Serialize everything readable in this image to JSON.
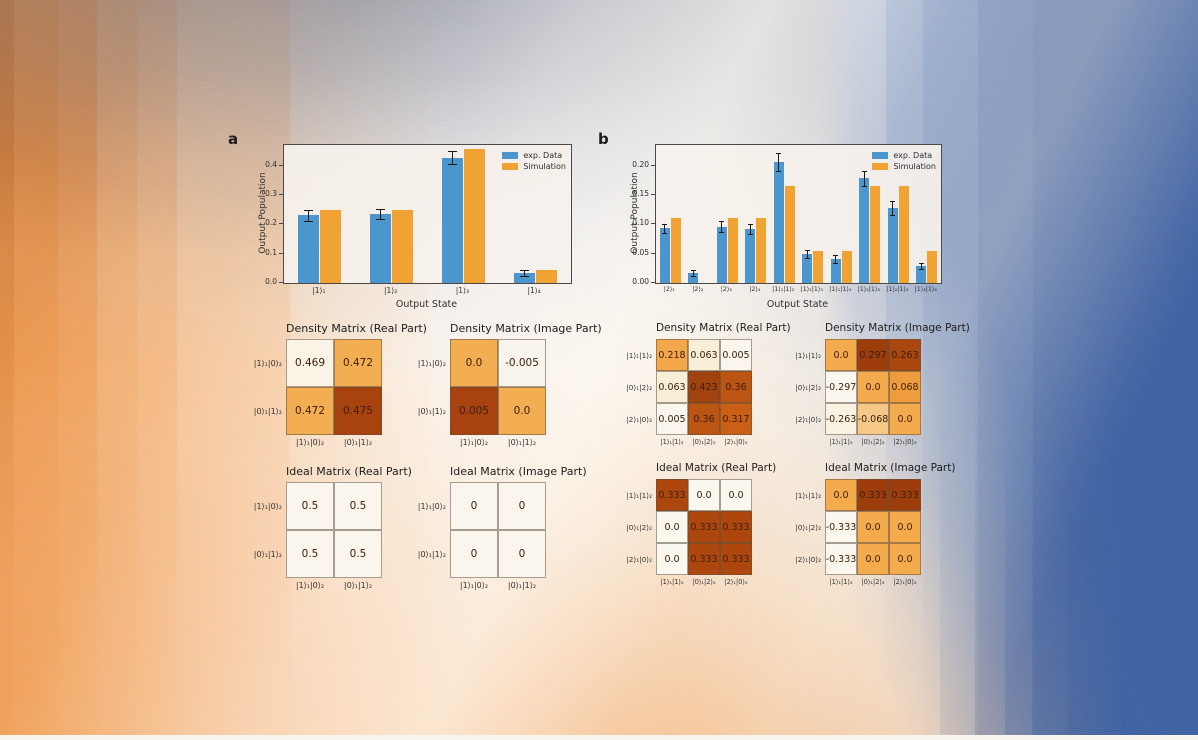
{
  "figure": {
    "panel_a_label": "a",
    "panel_b_label": "b"
  },
  "colors": {
    "exp_blue": "#4a96cd",
    "sim_orange": "#f0a232",
    "error_bar": "#1a1a1a",
    "plot_bg": "#f6f1eb",
    "bg_orange": "#ec8c3d",
    "bg_blue": "#4164a4"
  },
  "chart_data": [
    {
      "id": "a_bars",
      "type": "bar",
      "ylabel": "Output Population",
      "xlabel": "Output State",
      "ymax": 0.47,
      "yticks": [
        0.0,
        0.1,
        0.2,
        0.3,
        0.4
      ],
      "ytick_labels": [
        "0.0",
        "0.1",
        "0.2",
        "0.3",
        "0.4"
      ],
      "categories": [
        "|1⟩₁",
        "|1⟩₂",
        "|1⟩₃",
        "|1⟩₄"
      ],
      "legend_position": "upper right",
      "series": [
        {
          "name": "exp. Data",
          "color_key": "exp_blue",
          "values": [
            0.23,
            0.235,
            0.427,
            0.033
          ],
          "errors": [
            0.018,
            0.018,
            0.022,
            0.01
          ]
        },
        {
          "name": "Simulation",
          "color_key": "sim_orange",
          "values": [
            0.25,
            0.25,
            0.457,
            0.046
          ]
        }
      ]
    },
    {
      "id": "b_bars",
      "type": "bar",
      "ylabel": "Output Population",
      "xlabel": "Output State",
      "ymax": 0.235,
      "yticks": [
        0.0,
        0.05,
        0.1,
        0.15,
        0.2
      ],
      "ytick_labels": [
        "0.00",
        "0.05",
        "0.10",
        "0.15",
        "0.20"
      ],
      "categories": [
        "|2⟩₁",
        "|2⟩₂",
        "|2⟩₃",
        "|2⟩₄",
        "|1⟩₁|1⟩₂",
        "|1⟩₁|1⟩₃",
        "|1⟩₁|1⟩₄",
        "|1⟩₂|1⟩₃",
        "|1⟩₂|1⟩₄",
        "|1⟩₃|1⟩₄"
      ],
      "legend_position": "upper right",
      "series": [
        {
          "name": "exp. Data",
          "color_key": "exp_blue",
          "values": [
            0.093,
            0.017,
            0.096,
            0.092,
            0.206,
            0.05,
            0.041,
            0.178,
            0.128,
            0.029
          ],
          "errors": [
            0.008,
            0.005,
            0.01,
            0.009,
            0.016,
            0.007,
            0.007,
            0.012,
            0.012,
            0.005
          ]
        },
        {
          "name": "Simulation",
          "color_key": "sim_orange",
          "values": [
            0.111,
            0.0,
            0.111,
            0.111,
            0.166,
            0.055,
            0.055,
            0.166,
            0.166,
            0.055
          ]
        }
      ]
    },
    {
      "id": "a_density_real",
      "type": "heatmap",
      "title": "Density Matrix (Real Part)",
      "rows": [
        "|1⟩₁|0⟩₂",
        "|0⟩₁|1⟩₂"
      ],
      "cols": [
        "|1⟩₁|0⟩₂",
        "|0⟩₁|1⟩₂"
      ],
      "values": [
        [
          "0.469",
          "0.472"
        ],
        [
          "0.472",
          "0.475"
        ]
      ],
      "cell_colors": [
        [
          "#faf3e6",
          "#f3ae52"
        ],
        [
          "#f3ae52",
          "#a8430f"
        ]
      ]
    },
    {
      "id": "a_density_image",
      "type": "heatmap",
      "title": "Density Matrix (Image Part)",
      "rows": [
        "|1⟩₁|0⟩₂",
        "|0⟩₁|1⟩₂"
      ],
      "cols": [
        "|1⟩₁|0⟩₂",
        "|0⟩₁|1⟩₂"
      ],
      "values": [
        [
          "0.0",
          "-0.005"
        ],
        [
          "0.005",
          "0.0"
        ]
      ],
      "cell_colors": [
        [
          "#f3ae52",
          "#faf5ec"
        ],
        [
          "#a8430f",
          "#f3ae52"
        ]
      ]
    },
    {
      "id": "a_ideal_real",
      "type": "heatmap",
      "title": "Ideal Matrix (Real Part)",
      "rows": [
        "|1⟩₁|0⟩₂",
        "|0⟩₁|1⟩₂"
      ],
      "cols": [
        "|1⟩₁|0⟩₂",
        "|0⟩₁|1⟩₂"
      ],
      "values": [
        [
          "0.5",
          "0.5"
        ],
        [
          "0.5",
          "0.5"
        ]
      ],
      "cell_colors": [
        [
          "#faf6ee",
          "#faf6ee"
        ],
        [
          "#faf6ee",
          "#faf6ee"
        ]
      ]
    },
    {
      "id": "a_ideal_image",
      "type": "heatmap",
      "title": "Ideal Matrix (Image Part)",
      "rows": [
        "|1⟩₁|0⟩₂",
        "|0⟩₁|1⟩₂"
      ],
      "cols": [
        "|1⟩₁|0⟩₂",
        "|0⟩₁|1⟩₂"
      ],
      "values": [
        [
          "0",
          "0"
        ],
        [
          "0",
          "0"
        ]
      ],
      "cell_colors": [
        [
          "#faf6ee",
          "#faf6ee"
        ],
        [
          "#faf6ee",
          "#faf6ee"
        ]
      ]
    },
    {
      "id": "b_density_real",
      "type": "heatmap",
      "title": "Density Matrix (Real Part)",
      "rows": [
        "|1⟩₁|1⟩₂",
        "|0⟩₁|2⟩₂",
        "|2⟩₁|0⟩₂"
      ],
      "cols": [
        "|1⟩₁|1⟩₂",
        "|0⟩₁|2⟩₂",
        "|2⟩₁|0⟩₂"
      ],
      "values": [
        [
          "0.218",
          "0.063",
          "0.005"
        ],
        [
          "0.063",
          "0.423",
          "0.36"
        ],
        [
          "0.005",
          "0.36",
          "0.317"
        ]
      ],
      "cell_colors": [
        [
          "#f3a64a",
          "#f8efd9",
          "#fbf7ee"
        ],
        [
          "#f8efd9",
          "#a2420e",
          "#bc5412"
        ],
        [
          "#fbf7ee",
          "#bc5412",
          "#ca5f16"
        ]
      ]
    },
    {
      "id": "b_density_image",
      "type": "heatmap",
      "title": "Density Matrix (Image Part)",
      "rows": [
        "|1⟩₁|1⟩₂",
        "|0⟩₁|2⟩₂",
        "|2⟩₁|0⟩₂"
      ],
      "cols": [
        "|1⟩₁|1⟩₂",
        "|0⟩₁|2⟩₂",
        "|2⟩₁|0⟩₂"
      ],
      "values": [
        [
          "0.0",
          "0.297",
          "0.263"
        ],
        [
          "-0.297",
          "0.0",
          "0.068"
        ],
        [
          "-0.263",
          "-0.068",
          "0.0"
        ]
      ],
      "cell_colors": [
        [
          "#f4ab4e",
          "#9e3d0c",
          "#aa470f"
        ],
        [
          "#fbf7ef",
          "#f4ab4e",
          "#ee9c3e"
        ],
        [
          "#faf2e2",
          "#f6c887",
          "#f4ab4e"
        ]
      ]
    },
    {
      "id": "b_ideal_real",
      "type": "heatmap",
      "title": "Ideal Matrix (Real Part)",
      "rows": [
        "|1⟩₁|1⟩₂",
        "|0⟩₁|2⟩₂",
        "|2⟩₁|0⟩₂"
      ],
      "cols": [
        "|1⟩₁|1⟩₂",
        "|0⟩₁|2⟩₂",
        "|2⟩₁|0⟩₂"
      ],
      "values": [
        [
          "0.333",
          "0.0",
          "0.0"
        ],
        [
          "0.0",
          "0.333",
          "0.333"
        ],
        [
          "0.0",
          "0.333",
          "0.333"
        ]
      ],
      "cell_colors": [
        [
          "#ad470e",
          "#fbf8f0",
          "#fbf8f0"
        ],
        [
          "#fbf8f0",
          "#ad470e",
          "#ad470e"
        ],
        [
          "#fbf8f0",
          "#ad470e",
          "#ad470e"
        ]
      ]
    },
    {
      "id": "b_ideal_image",
      "type": "heatmap",
      "title": "Ideal Matrix (Image Part)",
      "rows": [
        "|1⟩₁|1⟩₂",
        "|0⟩₁|2⟩₂",
        "|2⟩₁|0⟩₂"
      ],
      "cols": [
        "|1⟩₁|1⟩₂",
        "|0⟩₁|2⟩₂",
        "|2⟩₁|0⟩₂"
      ],
      "values": [
        [
          "0.0",
          "0.333",
          "0.333"
        ],
        [
          "-0.333",
          "0.0",
          "0.0"
        ],
        [
          "-0.333",
          "0.0",
          "0.0"
        ]
      ],
      "cell_colors": [
        [
          "#f4ab4e",
          "#9e3d0c",
          "#9e3d0c"
        ],
        [
          "#fbf7ef",
          "#f4ab4e",
          "#f4ab4e"
        ],
        [
          "#fbf7ef",
          "#f4ab4e",
          "#f4ab4e"
        ]
      ]
    }
  ]
}
